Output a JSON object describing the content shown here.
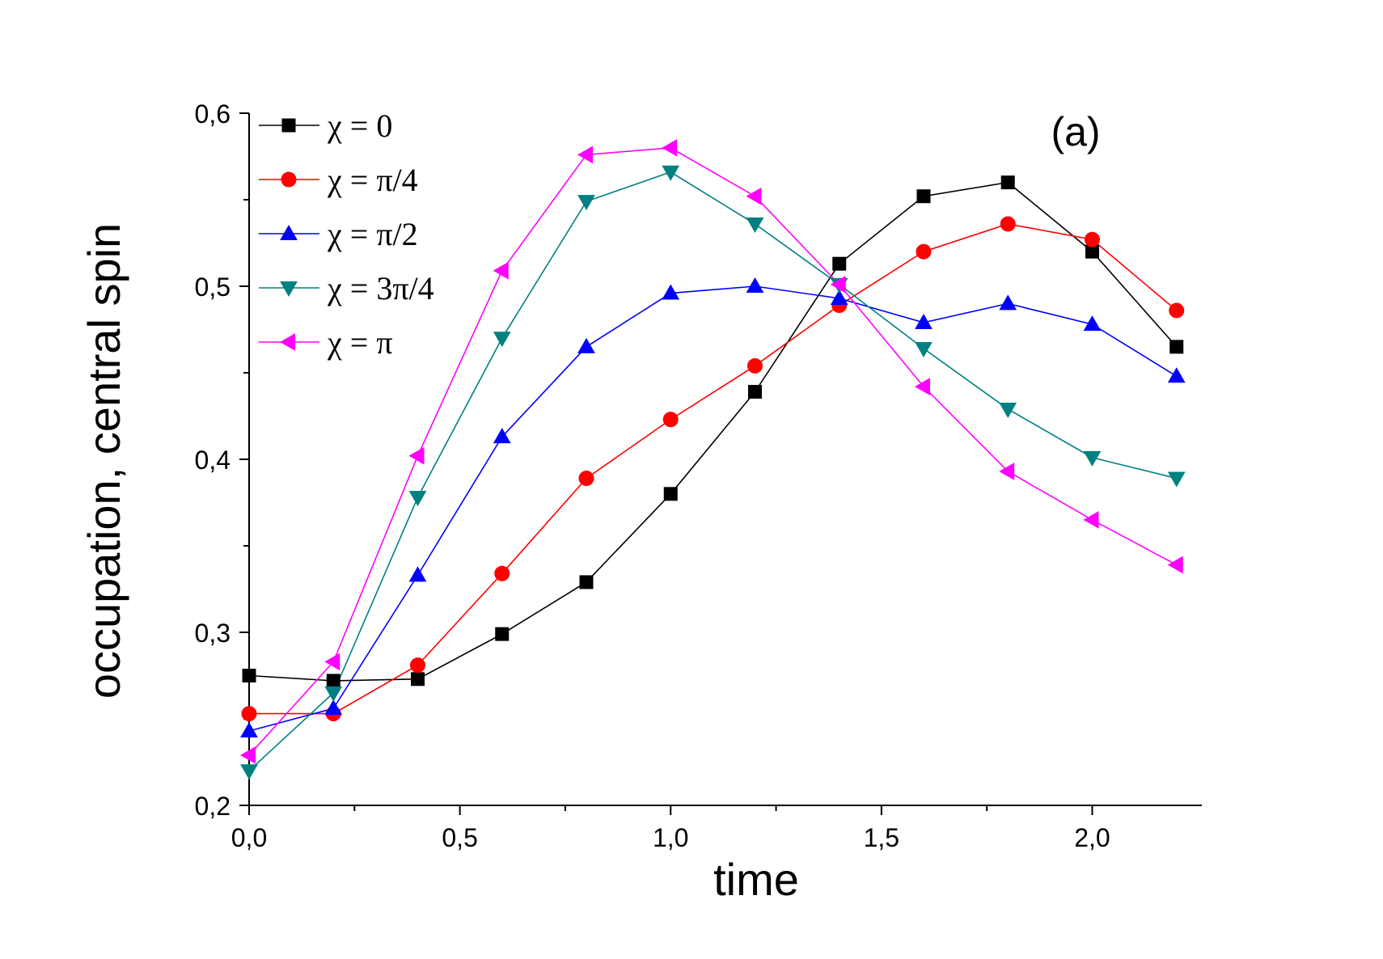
{
  "chart_data": {
    "type": "line",
    "panel_label": "(a)",
    "xlabel": "time",
    "ylabel": "occupation, central spin",
    "xlim": [
      0,
      2.26
    ],
    "ylim": [
      0.2,
      0.6
    ],
    "x_ticks": [
      0,
      0.5,
      1.0,
      1.5,
      2.0
    ],
    "x_tick_labels": [
      "0,0",
      "0,5",
      "1,0",
      "1,5",
      "2,0"
    ],
    "y_ticks": [
      0.2,
      0.3,
      0.4,
      0.5,
      0.6
    ],
    "y_tick_labels": [
      "0,2",
      "0,3",
      "0,4",
      "0,5",
      "0,6"
    ],
    "grid": false,
    "legend_position": "top-left",
    "x": [
      0,
      0.2,
      0.4,
      0.6,
      0.8,
      1.0,
      1.2,
      1.4,
      1.6,
      1.8,
      2.0,
      2.2
    ],
    "series": [
      {
        "name": "χ = 0",
        "color": "#000000",
        "marker": "square",
        "values": [
          0.275,
          0.272,
          0.273,
          0.299,
          0.329,
          0.38,
          0.439,
          0.513,
          0.552,
          0.56,
          0.52,
          0.465
        ]
      },
      {
        "name": "χ = π/4",
        "color": "#ff0000",
        "marker": "circle",
        "values": [
          0.253,
          0.253,
          0.281,
          0.334,
          0.389,
          0.423,
          0.454,
          0.489,
          0.52,
          0.536,
          0.527,
          0.486
        ]
      },
      {
        "name": "χ = π/2",
        "color": "#0000ff",
        "marker": "triangle-up",
        "values": [
          0.243,
          0.256,
          0.333,
          0.413,
          0.465,
          0.496,
          0.5,
          0.493,
          0.479,
          0.49,
          0.478,
          0.448
        ]
      },
      {
        "name": "χ = 3π/4",
        "color": "#008080",
        "marker": "triangle-down",
        "values": [
          0.22,
          0.265,
          0.378,
          0.47,
          0.549,
          0.566,
          0.536,
          0.501,
          0.464,
          0.429,
          0.401,
          0.389
        ]
      },
      {
        "name": "χ = π",
        "color": "#ff00ff",
        "marker": "triangle-left",
        "values": [
          0.229,
          0.283,
          0.402,
          0.509,
          0.576,
          0.58,
          0.552,
          0.501,
          0.442,
          0.393,
          0.365,
          0.339
        ]
      }
    ]
  }
}
